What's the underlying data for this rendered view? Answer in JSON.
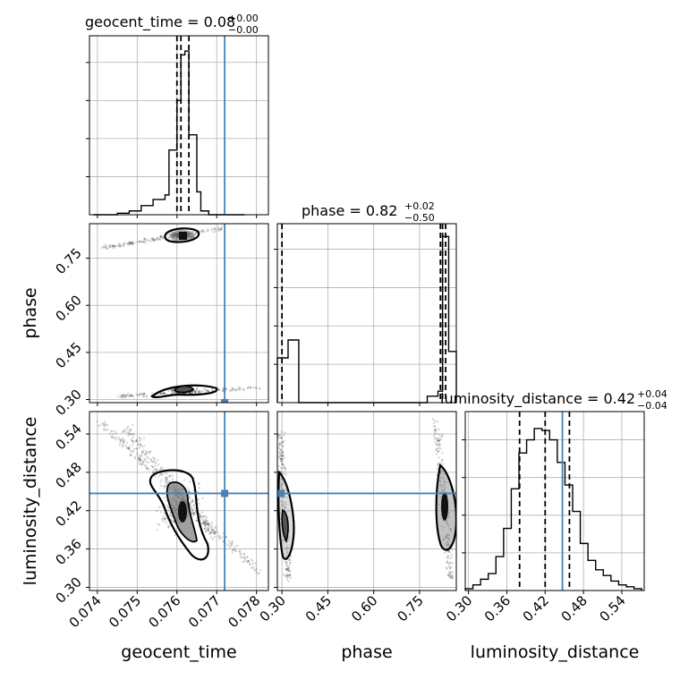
{
  "figure": {
    "colors": {
      "truth": "#4682b4",
      "hist": "#000000",
      "grid": "#b0b0b0",
      "density": "#000000"
    }
  },
  "chart_data": [
    {
      "type": "histogram",
      "panel": "geocent_time marginal",
      "title": {
        "param": "geocent_time",
        "value": "0.08",
        "plus": "+0.00",
        "minus": "−0.00"
      },
      "bins_x": [
        0.0739,
        0.0742,
        0.0745,
        0.0748,
        0.0751,
        0.0754,
        0.0757,
        0.0758,
        0.076,
        0.0761,
        0.0762,
        0.0763,
        0.0765,
        0.0766,
        0.0768,
        0.0771,
        0.0774,
        0.0777
      ],
      "heights": [
        0,
        0,
        0.2,
        0.5,
        1.2,
        2.0,
        2.6,
        8.5,
        15.0,
        21.0,
        21.5,
        10.5,
        3.0,
        0.5,
        0,
        0,
        0
      ],
      "quantiles": [
        0.076,
        0.0761,
        0.0763
      ],
      "truth_x": 0.0772,
      "xlim": [
        0.0738,
        0.0783
      ],
      "ylim": [
        0,
        23.5
      ]
    },
    {
      "type": "contour",
      "panel": "phase vs geocent_time",
      "ylabel": "phase",
      "x_ticks": [
        0.074,
        0.075,
        0.076,
        0.077,
        0.078
      ],
      "y_ticks": [
        "0.30",
        "0.45",
        "0.60",
        "0.75"
      ],
      "xlim": [
        0.0738,
        0.0783
      ],
      "ylim": [
        0.29,
        0.86
      ],
      "truth": {
        "x": 0.0772,
        "y": 0.29
      }
    },
    {
      "type": "histogram",
      "panel": "phase marginal",
      "title": {
        "param": "phase",
        "value": "0.82",
        "plus": "+0.02",
        "minus": "−0.50"
      },
      "bins_x": [
        0.285,
        0.32,
        0.355,
        0.39,
        0.425,
        0.46,
        0.495,
        0.53,
        0.565,
        0.6,
        0.635,
        0.67,
        0.705,
        0.74,
        0.775,
        0.81,
        0.825,
        0.845,
        0.87
      ],
      "heights": [
        3.5,
        4.9,
        0,
        0,
        0,
        0,
        0,
        0,
        0,
        0,
        0,
        0,
        0,
        0,
        0.5,
        0.9,
        13.0,
        4.0
      ],
      "quantiles": [
        0.3,
        0.818,
        0.825,
        0.835
      ],
      "xlim": [
        0.285,
        0.87
      ],
      "ylim": [
        0,
        14.0
      ]
    },
    {
      "type": "contour",
      "panel": "luminosity_distance vs geocent_time",
      "xlabel": "geocent_time",
      "ylabel": "luminosity_distance",
      "x_ticks": [
        "0.074",
        "0.075",
        "0.076",
        "0.077",
        "0.078"
      ],
      "y_ticks": [
        "0.30",
        "0.36",
        "0.42",
        "0.48",
        "0.54"
      ],
      "xlim": [
        0.0738,
        0.0783
      ],
      "ylim": [
        0.295,
        0.575
      ],
      "truth": {
        "x": 0.0772,
        "y": 0.447
      }
    },
    {
      "type": "contour",
      "panel": "luminosity_distance vs phase",
      "xlabel": "phase",
      "x_ticks": [
        "0.30",
        "0.45",
        "0.60",
        "0.75"
      ],
      "xlim": [
        0.285,
        0.87
      ],
      "ylim": [
        0.295,
        0.575
      ],
      "truth": {
        "x": 0.29,
        "y": 0.447
      }
    },
    {
      "type": "histogram",
      "panel": "luminosity_distance marginal",
      "title": {
        "param": "luminosity_distance",
        "value": "0.42",
        "plus": "+0.04",
        "minus": "−0.04"
      },
      "xlabel": "luminosity_distance",
      "x_ticks": [
        "0.30",
        "0.36",
        "0.42",
        "0.48",
        "0.54"
      ],
      "bins_x": [
        0.295,
        0.307,
        0.319,
        0.331,
        0.343,
        0.355,
        0.367,
        0.379,
        0.391,
        0.403,
        0.415,
        0.427,
        0.439,
        0.451,
        0.463,
        0.475,
        0.487,
        0.499,
        0.511,
        0.523,
        0.535,
        0.547,
        0.559,
        0.571
      ],
      "heights": [
        0.1,
        0.3,
        0.6,
        0.9,
        1.8,
        3.3,
        5.4,
        7.3,
        8.0,
        8.6,
        8.5,
        8.0,
        6.8,
        5.6,
        4.2,
        2.5,
        1.6,
        1.1,
        0.8,
        0.5,
        0.3,
        0.2,
        0.1
      ],
      "quantiles": [
        0.38,
        0.42,
        0.458
      ],
      "truth_x": 0.447,
      "xlim": [
        0.295,
        0.575
      ],
      "ylim": [
        0,
        9.5
      ]
    }
  ]
}
